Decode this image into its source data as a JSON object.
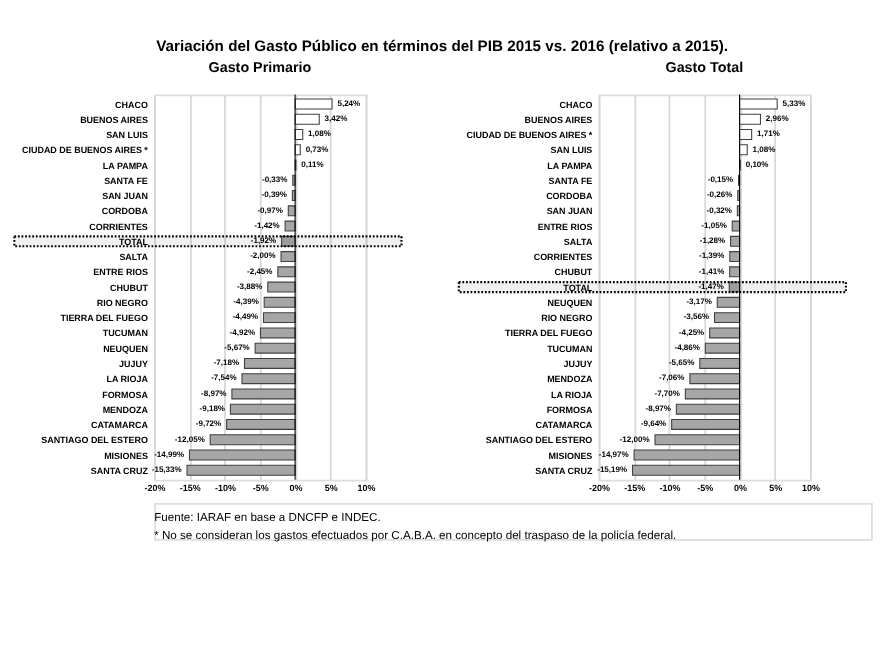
{
  "chart_data": [
    {
      "type": "bar",
      "orientation": "horizontal",
      "title": "Variación del Gasto Público en términos del PIB 2015 vs. 2016 (relativo a 2015).",
      "subtitle": "Gasto Primario",
      "categories": [
        "CHACO",
        "BUENOS AIRES",
        "SAN LUIS",
        "CIUDAD DE BUENOS AIRES *",
        "LA PAMPA",
        "SANTA FE",
        "SAN JUAN",
        "CORDOBA",
        "CORRIENTES",
        "TOTAL",
        "SALTA",
        "ENTRE RIOS",
        "CHUBUT",
        "RIO NEGRO",
        "TIERRA DEL FUEGO",
        "TUCUMAN",
        "NEUQUEN",
        "JUJUY",
        "LA RIOJA",
        "FORMOSA",
        "MENDOZA",
        "CATAMARCA",
        "SANTIAGO DEL ESTERO",
        "MISIONES",
        "SANTA CRUZ"
      ],
      "values": [
        5.24,
        3.42,
        1.08,
        0.73,
        0.11,
        -0.33,
        -0.39,
        -0.97,
        -1.42,
        -1.92,
        -2.0,
        -2.45,
        -3.88,
        -4.39,
        -4.49,
        -4.92,
        -5.67,
        -7.18,
        -7.54,
        -8.97,
        -9.18,
        -9.72,
        -12.05,
        -14.99,
        -15.33
      ],
      "value_labels": [
        "5,24%",
        "3,42%",
        "1,08%",
        "0,73%",
        "0,11%",
        "-0,33%",
        "-0,39%",
        "-0,97%",
        "-1,42%",
        "-1,92%",
        "-2,00%",
        "-2,45%",
        "-3,88%",
        "-4,39%",
        "-4,49%",
        "-4,92%",
        "-5,67%",
        "-7,18%",
        "-7,54%",
        "-8,97%",
        "-9,18%",
        "-9,72%",
        "-12,05%",
        "-14,99%",
        "-15,33%"
      ],
      "colors": [
        "#ffffff",
        "#ffffff",
        "#ffffff",
        "#ffffff",
        "#ffffff",
        "#a6a6a6",
        "#a6a6a6",
        "#a6a6a6",
        "#a6a6a6",
        "#a6a6a6",
        "#a6a6a6",
        "#a6a6a6",
        "#a6a6a6",
        "#a6a6a6",
        "#a6a6a6",
        "#a6a6a6",
        "#a6a6a6",
        "#a6a6a6",
        "#a6a6a6",
        "#a6a6a6",
        "#a6a6a6",
        "#a6a6a6",
        "#a6a6a6",
        "#a6a6a6",
        "#a6a6a6"
      ],
      "xlim": [
        -20,
        10
      ],
      "xticks": [
        {
          "value": -20,
          "label": "-20%"
        },
        {
          "value": -15,
          "label": "-15%"
        },
        {
          "value": -10,
          "label": "-10%"
        },
        {
          "value": -5,
          "label": "-5%"
        },
        {
          "value": 0,
          "label": "0%"
        },
        {
          "value": 5,
          "label": "5%"
        },
        {
          "value": 10,
          "label": "10%"
        }
      ],
      "grid": "x",
      "bands": [
        {
          "axis": "y",
          "from": "TOTAL",
          "to": "TOTAL",
          "color": "#000000"
        }
      ],
      "annotations": [
        "Fuente: IARAF en base a DNCFP e INDEC.",
        "* No se consideran los gastos efectuados por C.A.B.A. en concepto del traspaso de la policía federal."
      ]
    },
    {
      "type": "bar",
      "orientation": "horizontal",
      "title": "Gasto Total",
      "categories": [
        "CHACO",
        "BUENOS AIRES",
        "CIUDAD DE BUENOS AIRES *",
        "SAN LUIS",
        "LA PAMPA",
        "SANTA FE",
        "CORDOBA",
        "SAN JUAN",
        "ENTRE RIOS",
        "SALTA",
        "CORRIENTES",
        "CHUBUT",
        "TOTAL",
        "NEUQUEN",
        "RIO NEGRO",
        "TIERRA DEL FUEGO",
        "TUCUMAN",
        "JUJUY",
        "MENDOZA",
        "LA RIOJA",
        "FORMOSA",
        "CATAMARCA",
        "SANTIAGO DEL ESTERO",
        "MISIONES",
        "SANTA CRUZ"
      ],
      "values": [
        5.33,
        2.96,
        1.71,
        1.08,
        0.1,
        -0.15,
        -0.26,
        -0.32,
        -1.05,
        -1.28,
        -1.39,
        -1.41,
        -1.47,
        -3.17,
        -3.56,
        -4.25,
        -4.86,
        -5.65,
        -7.06,
        -7.7,
        -8.97,
        -9.64,
        -12.0,
        -14.97,
        -15.19
      ],
      "value_labels": [
        "5,33%",
        "2,96%",
        "1,71%",
        "1,08%",
        "0,10%",
        "-0,15%",
        "-0,26%",
        "-0,32%",
        "-1,05%",
        "-1,28%",
        "-1,39%",
        "-1,41%",
        "-1,47%",
        "-3,17%",
        "-3,56%",
        "-4,25%",
        "-4,86%",
        "-5,65%",
        "-7,06%",
        "-7,70%",
        "-8,97%",
        "-9,64%",
        "-12,00%",
        "-14,97%",
        "-15,19%"
      ],
      "colors": [
        "#ffffff",
        "#ffffff",
        "#ffffff",
        "#ffffff",
        "#ffffff",
        "#a6a6a6",
        "#a6a6a6",
        "#a6a6a6",
        "#a6a6a6",
        "#a6a6a6",
        "#a6a6a6",
        "#a6a6a6",
        "#a6a6a6",
        "#a6a6a6",
        "#a6a6a6",
        "#a6a6a6",
        "#a6a6a6",
        "#a6a6a6",
        "#a6a6a6",
        "#a6a6a6",
        "#a6a6a6",
        "#a6a6a6",
        "#a6a6a6",
        "#a6a6a6",
        "#a6a6a6"
      ],
      "xlim": [
        -20,
        10
      ],
      "xticks": [
        {
          "value": -20,
          "label": "-20%"
        },
        {
          "value": -15,
          "label": "-15%"
        },
        {
          "value": -10,
          "label": "-10%"
        },
        {
          "value": -5,
          "label": "-5%"
        },
        {
          "value": 0,
          "label": "0%"
        },
        {
          "value": 5,
          "label": "5%"
        },
        {
          "value": 10,
          "label": "10%"
        }
      ],
      "grid": "x",
      "bands": [
        {
          "axis": "y",
          "from": "TOTAL",
          "to": "TOTAL",
          "color": "#000000"
        }
      ]
    }
  ]
}
